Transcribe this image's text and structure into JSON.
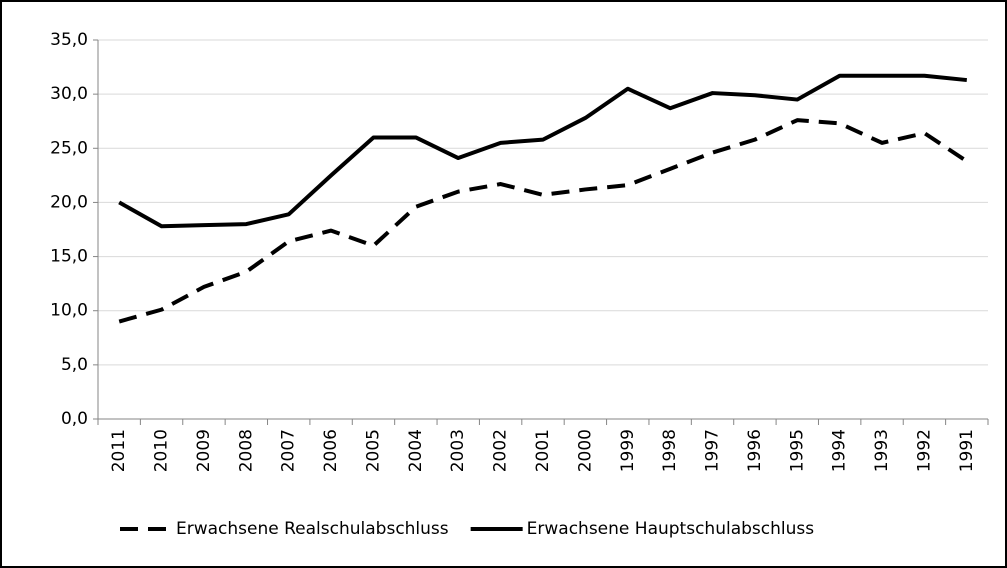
{
  "chart_data": {
    "type": "line",
    "categories": [
      "2011",
      "2010",
      "2009",
      "2008",
      "2007",
      "2006",
      "2005",
      "2004",
      "2003",
      "2002",
      "2001",
      "2000",
      "1999",
      "1998",
      "1997",
      "1996",
      "1995",
      "1994",
      "1993",
      "1992",
      "1991"
    ],
    "series": [
      {
        "name": "Erwachsene Realschulabschluss",
        "color": "#000000",
        "dash": "dashed",
        "values": [
          9.0,
          10.1,
          12.2,
          13.6,
          16.4,
          17.4,
          16.0,
          19.6,
          21.0,
          21.7,
          20.7,
          21.2,
          21.6,
          23.1,
          24.6,
          25.8,
          27.6,
          27.3,
          25.5,
          26.4,
          23.8
        ]
      },
      {
        "name": "Erwachsene Hauptschulabschluss",
        "color": "#000000",
        "dash": "solid",
        "values": [
          20.0,
          17.8,
          17.9,
          18.0,
          18.9,
          22.5,
          26.0,
          26.0,
          24.1,
          25.5,
          25.8,
          27.8,
          30.5,
          28.7,
          30.1,
          29.9,
          29.5,
          31.7,
          31.7,
          31.7,
          31.3
        ]
      }
    ],
    "ylim": [
      0,
      35
    ],
    "yticks": [
      {
        "value": 0,
        "label": "0,0"
      },
      {
        "value": 5,
        "label": "5,0"
      },
      {
        "value": 10,
        "label": "10,0"
      },
      {
        "value": 15,
        "label": "15,0"
      },
      {
        "value": 20,
        "label": "20,0"
      },
      {
        "value": 25,
        "label": "25,0"
      },
      {
        "value": 30,
        "label": "30,0"
      },
      {
        "value": 35,
        "label": "35,0"
      }
    ],
    "grid": true,
    "legend": "bottom"
  }
}
